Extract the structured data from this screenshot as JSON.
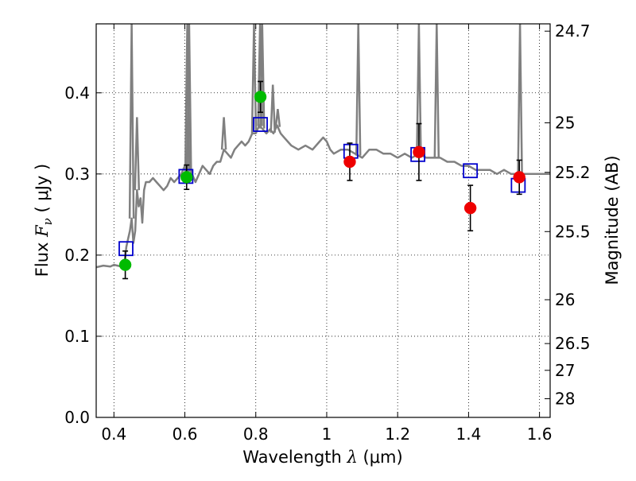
{
  "chart_data": {
    "type": "scatter",
    "title": "",
    "xlabel_text": "Wavelength  ",
    "xlabel_math": "λ",
    "xlabel_unit": " (μm)",
    "ylabel_text": "Flux  ",
    "ylabel_math": "F",
    "ylabel_sub": "ν",
    "ylabel_unit": "  ( μJy )",
    "ylabel_right": "Magnitude (AB)",
    "xlim": [
      0.35,
      1.63
    ],
    "ylim": [
      0.0,
      0.485
    ],
    "grid": true,
    "xticks": [
      0.4,
      0.6,
      0.8,
      1.0,
      1.2,
      1.4,
      1.6
    ],
    "xtick_labels": [
      "0.4",
      "0.6",
      "0.8",
      "1",
      "1.2",
      "1.4",
      "1.6"
    ],
    "yticks": [
      0.0,
      0.1,
      0.2,
      0.3,
      0.4
    ],
    "ytick_labels": [
      "0.0",
      "0.1",
      "0.2",
      "0.3",
      "0.4"
    ],
    "right_ticks": [
      {
        "label": "24.7",
        "flux": 0.476
      },
      {
        "label": "25",
        "flux": 0.363
      },
      {
        "label": "25.2",
        "flux": 0.302
      },
      {
        "label": "25.5",
        "flux": 0.229
      },
      {
        "label": "26",
        "flux": 0.145
      },
      {
        "label": "26.5",
        "flux": 0.091
      },
      {
        "label": "27",
        "flux": 0.058
      },
      {
        "label": "28",
        "flux": 0.023
      }
    ],
    "colors": {
      "spectrum": "#808080",
      "green_points": "#00bb00",
      "red_points": "#ee0000",
      "model_squares": "#0000cc",
      "errorbars": "#000000",
      "grid": "#000000"
    },
    "series": [
      {
        "style": "line",
        "x": [
          0.35,
          0.37,
          0.39,
          0.4,
          0.41,
          0.42,
          0.43,
          0.435,
          0.44,
          0.445,
          0.45,
          0.455,
          0.46,
          0.465,
          0.47,
          0.475,
          0.48,
          0.485,
          0.49,
          0.5,
          0.51,
          0.52,
          0.53,
          0.54,
          0.55,
          0.56,
          0.57,
          0.58,
          0.59,
          0.6,
          0.61,
          0.62,
          0.63,
          0.64,
          0.65,
          0.66,
          0.67,
          0.68,
          0.69,
          0.7,
          0.71,
          0.72,
          0.73,
          0.74,
          0.75,
          0.76,
          0.77,
          0.78,
          0.79,
          0.8,
          0.81,
          0.82,
          0.83,
          0.84,
          0.85,
          0.86,
          0.87,
          0.88,
          0.89,
          0.9,
          0.92,
          0.94,
          0.96,
          0.98,
          0.99,
          1.0,
          1.01,
          1.02,
          1.04,
          1.06,
          1.08,
          1.1,
          1.12,
          1.14,
          1.16,
          1.18,
          1.2,
          1.22,
          1.24,
          1.26,
          1.28,
          1.3,
          1.32,
          1.34,
          1.36,
          1.38,
          1.4,
          1.42,
          1.44,
          1.46,
          1.48,
          1.5,
          1.52,
          1.54,
          1.56,
          1.58,
          1.6,
          1.63
        ],
        "y": [
          0.185,
          0.187,
          0.186,
          0.188,
          0.187,
          0.186,
          0.19,
          0.21,
          0.22,
          0.23,
          0.245,
          0.215,
          0.23,
          0.28,
          0.26,
          0.27,
          0.24,
          0.28,
          0.29,
          0.29,
          0.295,
          0.29,
          0.285,
          0.28,
          0.285,
          0.295,
          0.29,
          0.295,
          0.3,
          0.31,
          0.3,
          0.3,
          0.29,
          0.3,
          0.31,
          0.305,
          0.3,
          0.31,
          0.315,
          0.315,
          0.33,
          0.325,
          0.32,
          0.33,
          0.335,
          0.34,
          0.335,
          0.34,
          0.35,
          0.35,
          0.36,
          0.355,
          0.35,
          0.355,
          0.35,
          0.36,
          0.35,
          0.345,
          0.34,
          0.335,
          0.33,
          0.335,
          0.33,
          0.34,
          0.345,
          0.34,
          0.33,
          0.325,
          0.33,
          0.33,
          0.325,
          0.32,
          0.33,
          0.33,
          0.325,
          0.325,
          0.32,
          0.325,
          0.32,
          0.325,
          0.32,
          0.32,
          0.32,
          0.315,
          0.315,
          0.31,
          0.31,
          0.305,
          0.305,
          0.305,
          0.3,
          0.305,
          0.3,
          0.3,
          0.3,
          0.3,
          0.3,
          0.3
        ]
      },
      {
        "style": "emission_lines",
        "x": [
          0.45,
          0.465,
          0.607,
          0.612,
          0.71,
          0.795,
          0.812,
          0.818,
          0.848,
          0.862,
          1.089,
          1.26,
          1.31,
          1.545
        ],
        "y_peak": [
          0.485,
          0.37,
          0.485,
          0.485,
          0.37,
          0.485,
          0.485,
          0.485,
          0.41,
          0.38,
          0.485,
          0.485,
          0.485,
          0.485
        ]
      },
      {
        "style": "errorbar_points",
        "color": "green",
        "x": [
          0.432,
          0.605,
          0.813
        ],
        "y": [
          0.188,
          0.296,
          0.395
        ],
        "yerr": [
          0.017,
          0.015,
          0.019
        ]
      },
      {
        "style": "errorbar_points",
        "color": "red",
        "x": [
          1.065,
          1.26,
          1.405,
          1.543
        ],
        "y": [
          0.315,
          0.327,
          0.258,
          0.296
        ],
        "yerr": [
          0.023,
          0.035,
          0.028,
          0.021
        ]
      },
      {
        "style": "open_squares",
        "color": "blue",
        "x": [
          0.434,
          0.603,
          0.813,
          1.068,
          1.257,
          1.405,
          1.54
        ],
        "y": [
          0.208,
          0.297,
          0.361,
          0.328,
          0.324,
          0.304,
          0.286
        ]
      }
    ]
  }
}
